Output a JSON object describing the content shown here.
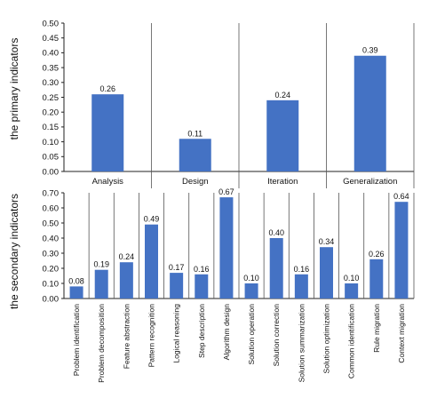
{
  "chart_data": [
    {
      "type": "bar",
      "ylabel": "the primary indicators",
      "ylim": [
        0,
        0.5
      ],
      "yticks": [
        "0.00",
        "0.05",
        "0.10",
        "0.15",
        "0.20",
        "0.25",
        "0.30",
        "0.35",
        "0.40",
        "0.45",
        "0.50"
      ],
      "categories": [
        "Analysis",
        "Design",
        "Iteration",
        "Generalization"
      ],
      "values": [
        0.26,
        0.11,
        0.24,
        0.39
      ],
      "value_labels": [
        "0.26",
        "0.11",
        "0.24",
        "0.39"
      ],
      "bar_color": "#4472c4"
    },
    {
      "type": "bar",
      "ylabel": "the secondary indicators",
      "ylim": [
        0,
        0.7
      ],
      "yticks": [
        "0.00",
        "0.10",
        "0.20",
        "0.30",
        "0.40",
        "0.50",
        "0.60",
        "0.70"
      ],
      "categories": [
        "Problem identification",
        "Problem decomposition",
        "Feature abstraction",
        "Pattern recognition",
        "Logical reasoning",
        "Step description",
        "Algorithm design",
        "Solution operation",
        "Solution correction",
        "Solution summarization",
        "Solution optimization",
        "Common identification",
        "Rule migration",
        "Context migration"
      ],
      "values": [
        0.08,
        0.19,
        0.24,
        0.49,
        0.17,
        0.16,
        0.67,
        0.1,
        0.4,
        0.16,
        0.34,
        0.1,
        0.26,
        0.64
      ],
      "value_labels": [
        "0.08",
        "0.19",
        "0.24",
        "0.49",
        "0.17",
        "0.16",
        "0.67",
        "0.10",
        "0.40",
        "0.16",
        "0.34",
        "0.10",
        "0.26",
        "0.64"
      ],
      "bar_color": "#4472c4"
    }
  ]
}
